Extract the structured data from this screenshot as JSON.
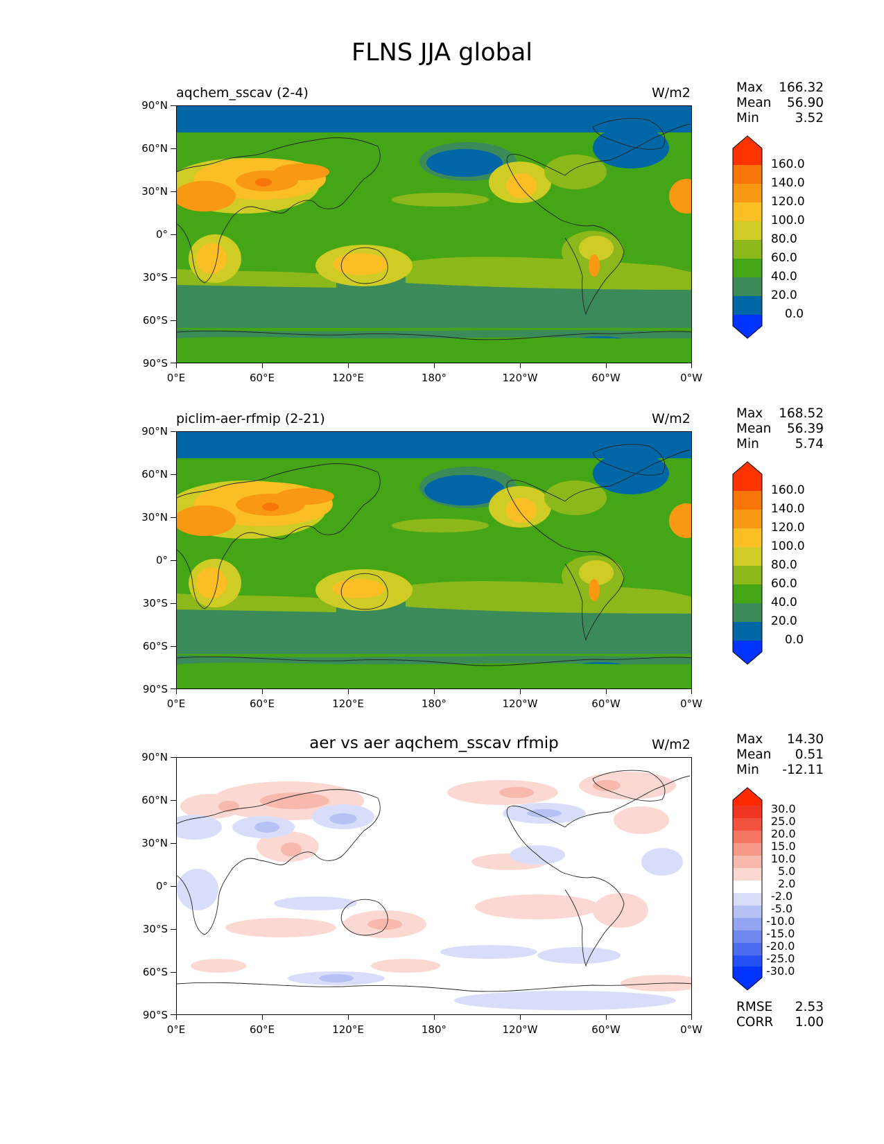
{
  "figure_title": "FLNS JJA global",
  "lat_labels": [
    "90°N",
    "60°N",
    "30°N",
    "0°",
    "30°S",
    "60°S",
    "90°S"
  ],
  "lon_labels": [
    "0°E",
    "60°E",
    "120°E",
    "180°",
    "120°W",
    "60°W",
    "0°W"
  ],
  "panels": [
    {
      "title": "aqchem_sscav (2-4)",
      "units": "W/m2",
      "stats": {
        "max_label": "Max",
        "max": "166.32",
        "mean_label": "Mean",
        "mean": "56.90",
        "min_label": "Min",
        "min": "3.52"
      },
      "colorbar_levels": [
        "160.0",
        "140.0",
        "120.0",
        "100.0",
        "80.0",
        "60.0",
        "40.0",
        "20.0",
        "0.0"
      ]
    },
    {
      "title": "piclim-aer-rfmip (2-21)",
      "units": "W/m2",
      "stats": {
        "max_label": "Max",
        "max": "168.52",
        "mean_label": "Mean",
        "mean": "56.39",
        "min_label": "Min",
        "min": "5.74"
      },
      "colorbar_levels": [
        "160.0",
        "140.0",
        "120.0",
        "100.0",
        "80.0",
        "60.0",
        "40.0",
        "20.0",
        "0.0"
      ]
    },
    {
      "title": "aer vs aer aqchem_sscav rfmip",
      "units": "W/m2",
      "stats": {
        "max_label": "Max",
        "max": "14.30",
        "mean_label": "Mean",
        "mean": "0.51",
        "min_label": "Min",
        "min": "-12.11"
      },
      "colorbar_levels": [
        "30.0",
        "25.0",
        "20.0",
        "15.0",
        "10.0",
        "5.0",
        "2.0",
        "-2.0",
        "-5.0",
        "-10.0",
        "-15.0",
        "-20.0",
        "-25.0",
        "-30.0"
      ],
      "rmse_label": "RMSE",
      "rmse": "2.53",
      "corr_label": "CORR",
      "corr": "1.00"
    }
  ],
  "colors": {
    "abs_scale": [
      "#0033ff",
      "#0066a6",
      "#3a8a5a",
      "#44a516",
      "#8db81c",
      "#cfcc25",
      "#fbbf25",
      "#f99812",
      "#f87507",
      "#ff3300"
    ],
    "diff_scale": [
      "#0033ff",
      "#2450f5",
      "#4c6cef",
      "#7088ee",
      "#94a5f2",
      "#b6c2f6",
      "#d8def9",
      "#ffffff",
      "#fbd8d2",
      "#f8b9ad",
      "#f69888",
      "#f47561",
      "#f2523e",
      "#f03522",
      "#ff2a00"
    ]
  }
}
